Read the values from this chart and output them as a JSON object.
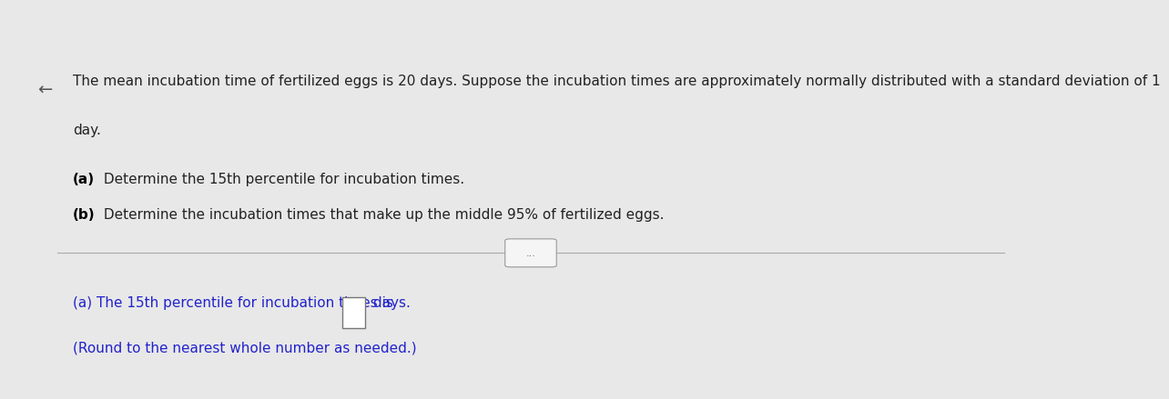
{
  "bg_color": "#e8e8e8",
  "content_bg": "#f5f5f5",
  "header_bar_color": "#29a8e0",
  "left_bar_color": "#c8a84b",
  "arrow_color": "#555555",
  "top_text_line1": "The mean incubation time of fertilized eggs is 20 days. Suppose the incubation times are approximately normally distributed with a standard deviation of 1",
  "top_text_line2": "day.",
  "part_a_label": "(a)",
  "part_a_text": " Determine the 15th percentile for incubation times.",
  "part_b_label": "(b)",
  "part_b_text": " Determine the incubation times that make up the middle 95% of fertilized eggs.",
  "divider_button_text": "...",
  "answer_line1_prefix": "(a) The 15th percentile for incubation times is ",
  "answer_line1_suffix": " days.",
  "answer_line2": "(Round to the nearest whole number as needed.)",
  "text_color": "#222222",
  "bold_label_color": "#000000",
  "answer_text_color": "#2222cc",
  "font_size_top": 11.0,
  "font_size_parts": 11.0,
  "font_size_answer": 11.0
}
